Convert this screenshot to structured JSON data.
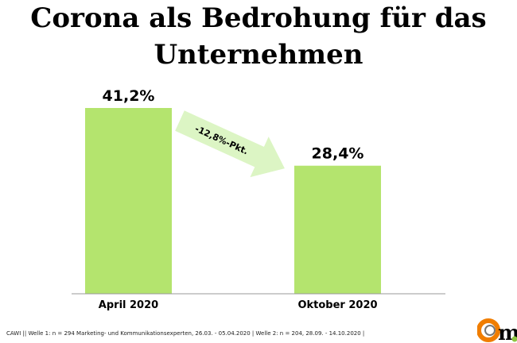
{
  "chart_data": {
    "type": "bar",
    "title": "Corona als Bedrohung für das Unternehmen",
    "categories": [
      "April 2020",
      "Oktober 2020"
    ],
    "values": [
      41.2,
      28.4
    ],
    "data_labels": [
      "41,2%",
      "28,4%"
    ],
    "annotation": "-12,8%-Pkt.",
    "ylim": [
      0,
      45
    ],
    "grid": false,
    "bar_color": "#b4e46e",
    "arrow_color": "#dcf5c4"
  },
  "footer": "CAWI || Welle 1: n = 294 Marketing- und Kommunikationsexperten, 26.03. - 05.04.2020 | Welle 2: n = 204, 28.09. - 14.10.2020 |",
  "logo": {
    "text": "m.",
    "colors": {
      "ring": "#f07d00",
      "dot": "#8dc63f"
    }
  }
}
